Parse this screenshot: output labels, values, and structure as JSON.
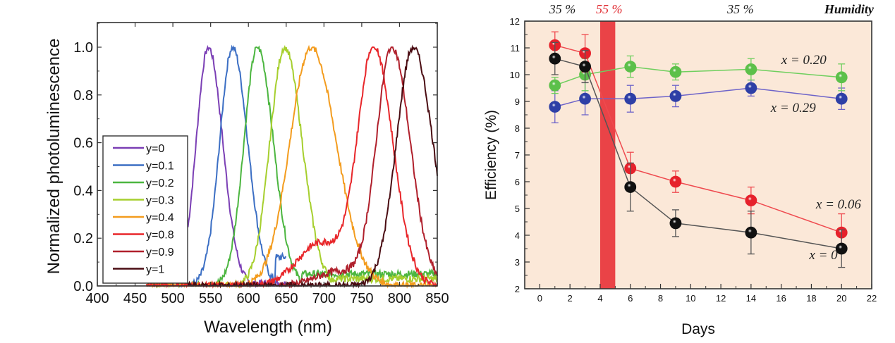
{
  "chart_data": [
    {
      "type": "line",
      "title": "",
      "xlabel": "Wavelength (nm)",
      "ylabel": "Normalized photoluminescence",
      "xlim": [
        400,
        850
      ],
      "ylim": [
        0.0,
        1.1
      ],
      "xticks": [
        "400",
        "450",
        "500",
        "550",
        "600",
        "650",
        "700",
        "750",
        "800",
        "850"
      ],
      "yticks": [
        "0.0",
        "0.2",
        "0.4",
        "0.6",
        "0.8",
        "1.0"
      ],
      "grid": false,
      "legend_position": "left-middle",
      "series": [
        {
          "name": "y=0",
          "color": "#7b3fb5",
          "peak_nm": 547,
          "fwhm_nm": 38,
          "start_nm": 520,
          "end_nm": 650,
          "tail": 0.01
        },
        {
          "name": "y=0.1",
          "color": "#3c6fc4",
          "peak_nm": 579,
          "fwhm_nm": 40,
          "start_nm": 500,
          "end_nm": 650,
          "tail": 0.12
        },
        {
          "name": "y=0.2",
          "color": "#4cb640",
          "peak_nm": 612,
          "fwhm_nm": 42,
          "start_nm": 465,
          "end_nm": 850,
          "tail": 0.05
        },
        {
          "name": "y=0.3",
          "color": "#a6cf2e",
          "peak_nm": 648,
          "fwhm_nm": 46,
          "start_nm": 470,
          "end_nm": 850,
          "tail": 0.03
        },
        {
          "name": "y=0.4",
          "color": "#f39c1e",
          "peak_nm": 683,
          "fwhm_nm": 66,
          "start_nm": 470,
          "end_nm": 850,
          "tail": 0.0
        },
        {
          "name": "y=0.8",
          "color": "#e8262a",
          "peak_nm": 766,
          "fwhm_nm": 50,
          "start_nm": 465,
          "end_nm": 850,
          "tail": 0.0,
          "shoulder_nm": 695,
          "shoulder_height": 0.18
        },
        {
          "name": "y=0.9",
          "color": "#b0202c",
          "peak_nm": 790,
          "fwhm_nm": 48,
          "start_nm": 640,
          "end_nm": 850,
          "tail": 0.0,
          "shoulder_nm": 720,
          "shoulder_height": 0.06
        },
        {
          "name": "y=1",
          "color": "#4a0c12",
          "peak_nm": 818,
          "fwhm_nm": 52,
          "start_nm": 520,
          "end_nm": 850,
          "tail": 0.0
        }
      ]
    },
    {
      "type": "scatter",
      "title": "",
      "xlabel": "Days",
      "ylabel": "Efficiency  (%)",
      "xlim": [
        -1,
        22
      ],
      "ylim": [
        2,
        12
      ],
      "xticks": [
        "0",
        "2",
        "4",
        "6",
        "8",
        "10",
        "12",
        "14",
        "16",
        "18",
        "20",
        "22"
      ],
      "yticks": [
        "2",
        "3",
        "4",
        "5",
        "6",
        "7",
        "8",
        "9",
        "10",
        "11",
        "12"
      ],
      "grid": false,
      "background_color": "#fbe8d8",
      "humidity_band": {
        "from_day": 4,
        "to_day": 5,
        "color": "#ea4347"
      },
      "top_annotations": [
        {
          "text": "35 %",
          "day": 1.5,
          "color": "#222222",
          "bold": false
        },
        {
          "text": "55 %",
          "day": 4.6,
          "color": "#e0262c",
          "bold": false
        },
        {
          "text": "35 %",
          "day": 13.3,
          "color": "#222222",
          "bold": false
        },
        {
          "text": "Humidity",
          "day": 20.5,
          "color": "#111111",
          "bold": true
        }
      ],
      "series": [
        {
          "name": "x = 0.20",
          "color": "#5cc04a",
          "line_color": "#6fcf5e",
          "x": [
            1,
            3,
            6,
            9,
            14,
            20
          ],
          "y": [
            9.6,
            10.0,
            10.3,
            10.1,
            10.2,
            9.9
          ],
          "err": [
            0.3,
            0.6,
            0.4,
            0.3,
            0.4,
            0.5
          ],
          "label_pos": {
            "day": 17.5,
            "value": 10.4
          }
        },
        {
          "name": "x = 0.29",
          "color": "#2e3fa6",
          "line_color": "#6d63c9",
          "x": [
            1,
            3,
            6,
            9,
            14,
            20
          ],
          "y": [
            8.8,
            9.1,
            9.1,
            9.2,
            9.5,
            9.1
          ],
          "err": [
            0.6,
            0.6,
            0.5,
            0.4,
            0.3,
            0.4
          ],
          "label_pos": {
            "day": 16.8,
            "value": 8.6
          }
        },
        {
          "name": "x = 0.06",
          "color": "#e6212b",
          "line_color": "#ef4a4f",
          "x": [
            1,
            3,
            6,
            9,
            14,
            20
          ],
          "y": [
            11.1,
            10.8,
            6.5,
            6.0,
            5.3,
            4.1
          ],
          "err": [
            0.5,
            0.7,
            0.6,
            0.4,
            0.5,
            0.7
          ],
          "label_pos": {
            "day": 19.8,
            "value": 5.0
          }
        },
        {
          "name": "x = 0",
          "color": "#111111",
          "line_color": "#555555",
          "x": [
            1,
            3,
            6,
            9,
            14,
            20
          ],
          "y": [
            10.6,
            10.3,
            5.8,
            4.45,
            4.1,
            3.5
          ],
          "err": [
            0.6,
            0.6,
            0.9,
            0.5,
            0.8,
            0.7
          ],
          "label_pos": {
            "day": 18.8,
            "value": 3.1
          }
        }
      ]
    }
  ]
}
